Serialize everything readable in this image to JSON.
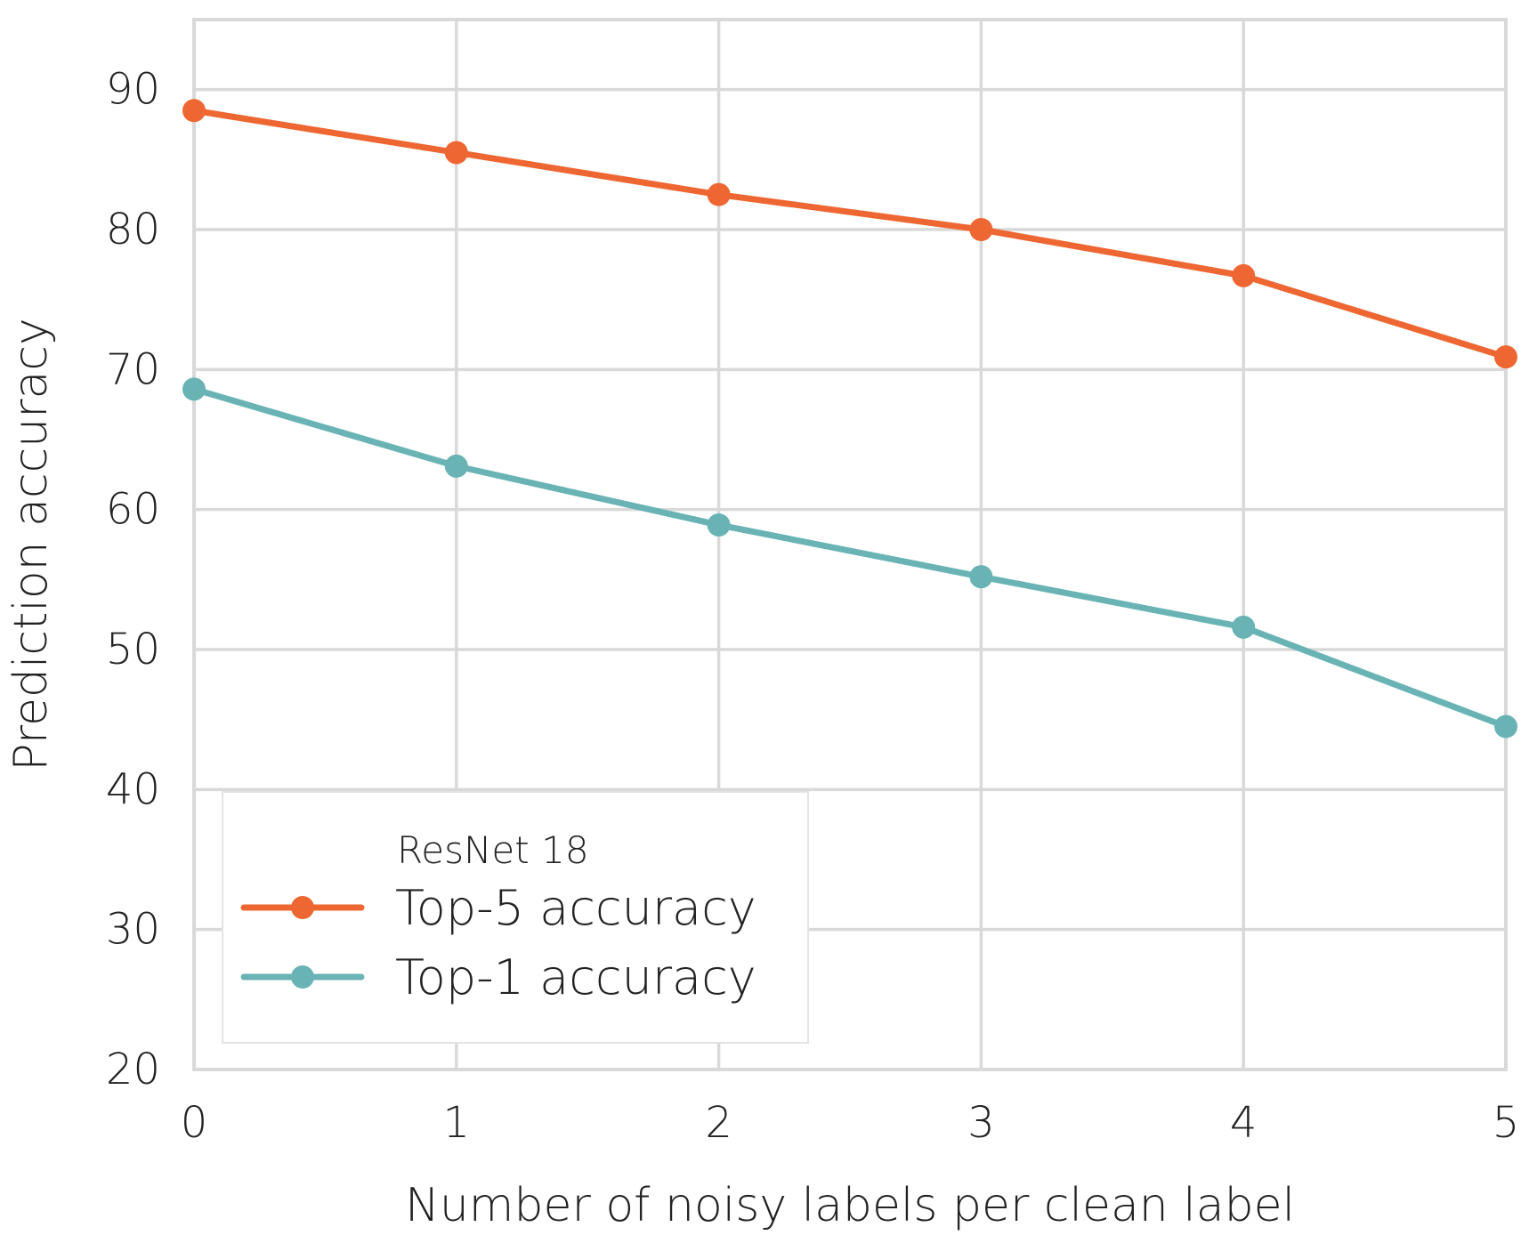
{
  "chart_data": {
    "type": "line",
    "xlabel": "Number of noisy labels per clean label",
    "ylabel": "Prediction accuracy",
    "x": [
      0,
      1,
      2,
      3,
      4,
      5
    ],
    "xlim": [
      0,
      5
    ],
    "ylim": [
      20,
      95
    ],
    "xticks": [
      "0",
      "1",
      "2",
      "3",
      "4",
      "5"
    ],
    "yticks": [
      "20",
      "30",
      "40",
      "50",
      "60",
      "70",
      "80",
      "90"
    ],
    "grid": true,
    "legend": {
      "title": "ResNet 18",
      "placement": "lower-left"
    },
    "series": [
      {
        "name": "Top-5 accuracy",
        "color": "#ee6632",
        "values": [
          88.5,
          85.5,
          82.5,
          80.0,
          76.7,
          70.9
        ]
      },
      {
        "name": "Top-1 accuracy",
        "color": "#6ab3b5",
        "values": [
          68.6,
          63.1,
          58.9,
          55.2,
          51.6,
          44.5
        ]
      }
    ]
  }
}
